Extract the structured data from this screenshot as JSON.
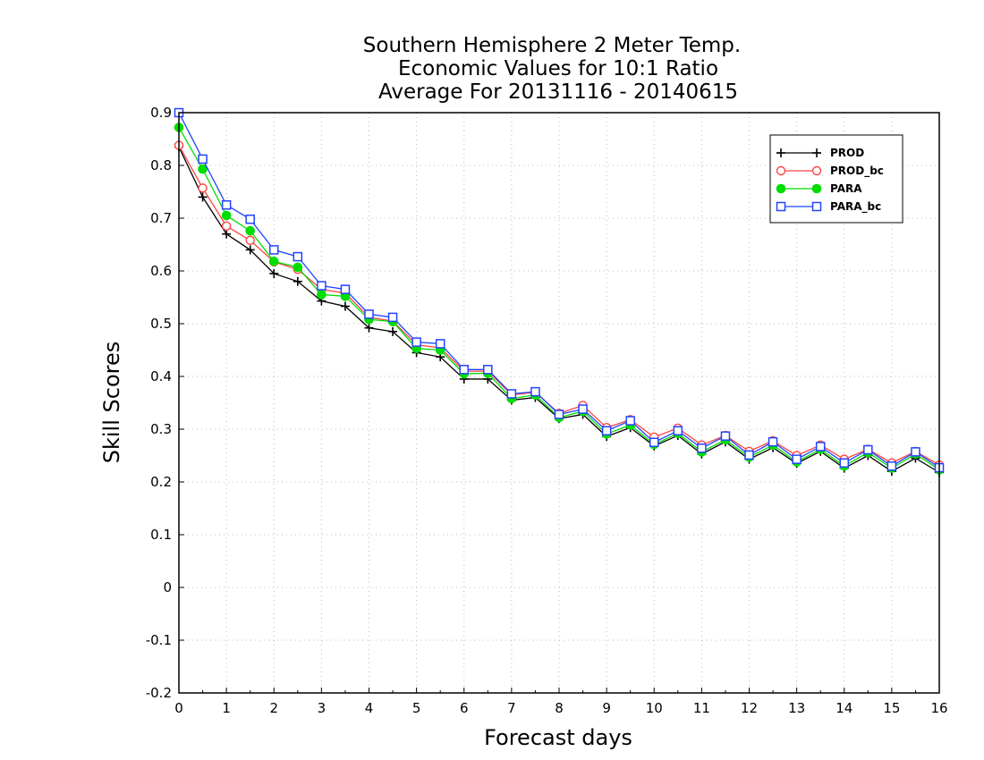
{
  "chart_data": {
    "type": "line",
    "title_lines": [
      "Southern Hemisphere 2 Meter Temp.",
      "Economic Values for 10:1 Ratio",
      "Average For 20131116 - 20140615"
    ],
    "xlabel": "Forecast days",
    "ylabel": "Skill Scores",
    "xlim": [
      0,
      16
    ],
    "ylim": [
      -0.2,
      0.9
    ],
    "x_ticks": [
      0,
      1,
      2,
      3,
      4,
      5,
      6,
      7,
      8,
      9,
      10,
      11,
      12,
      13,
      14,
      15,
      16
    ],
    "y_ticks": [
      -0.2,
      -0.1,
      0,
      0.1,
      0.2,
      0.3,
      0.4,
      0.5,
      0.6,
      0.7,
      0.8,
      0.9
    ],
    "y_tick_labels": [
      "-0.2",
      "-0.1",
      "0",
      "0.1",
      "0.2",
      "0.3",
      "0.4",
      "0.5",
      "0.6",
      "0.7",
      "0.8",
      "0.9"
    ],
    "grid": true,
    "legend_position": "top-right",
    "x": [
      0,
      0.5,
      1,
      1.5,
      2,
      2.5,
      3,
      3.5,
      4,
      4.5,
      5,
      5.5,
      6,
      6.5,
      7,
      7.5,
      8,
      8.5,
      9,
      9.5,
      10,
      10.5,
      11,
      11.5,
      12,
      12.5,
      13,
      13.5,
      14,
      14.5,
      15,
      15.5,
      16
    ],
    "series": [
      {
        "name": "PROD",
        "color": "#000000",
        "marker": "plus",
        "values": [
          0.835,
          0.74,
          0.67,
          0.64,
          0.595,
          0.58,
          0.543,
          0.533,
          0.492,
          0.485,
          0.445,
          0.437,
          0.395,
          0.395,
          0.355,
          0.36,
          0.32,
          0.328,
          0.286,
          0.303,
          0.268,
          0.288,
          0.253,
          0.276,
          0.243,
          0.265,
          0.235,
          0.258,
          0.226,
          0.25,
          0.22,
          0.245,
          0.218
        ]
      },
      {
        "name": "PROD_bc",
        "color": "#ff4444",
        "marker": "circle",
        "values": [
          0.838,
          0.757,
          0.685,
          0.658,
          0.617,
          0.603,
          0.565,
          0.558,
          0.512,
          0.505,
          0.46,
          0.454,
          0.41,
          0.41,
          0.365,
          0.37,
          0.33,
          0.345,
          0.303,
          0.318,
          0.285,
          0.302,
          0.27,
          0.288,
          0.258,
          0.278,
          0.25,
          0.27,
          0.243,
          0.262,
          0.236,
          0.258,
          0.232
        ]
      },
      {
        "name": "PARA",
        "color": "#00dd00",
        "marker": "filled-circle",
        "values": [
          0.872,
          0.793,
          0.705,
          0.676,
          0.618,
          0.607,
          0.555,
          0.552,
          0.508,
          0.504,
          0.453,
          0.45,
          0.405,
          0.406,
          0.358,
          0.365,
          0.322,
          0.334,
          0.291,
          0.308,
          0.271,
          0.292,
          0.257,
          0.28,
          0.247,
          0.27,
          0.238,
          0.262,
          0.23,
          0.256,
          0.226,
          0.253,
          0.223
        ]
      },
      {
        "name": "PARA_bc",
        "color": "#2244ff",
        "marker": "square",
        "values": [
          0.9,
          0.812,
          0.725,
          0.698,
          0.64,
          0.627,
          0.572,
          0.565,
          0.518,
          0.512,
          0.465,
          0.462,
          0.413,
          0.413,
          0.367,
          0.371,
          0.328,
          0.338,
          0.297,
          0.316,
          0.275,
          0.297,
          0.264,
          0.287,
          0.251,
          0.276,
          0.243,
          0.267,
          0.236,
          0.261,
          0.23,
          0.257,
          0.227
        ]
      }
    ]
  }
}
